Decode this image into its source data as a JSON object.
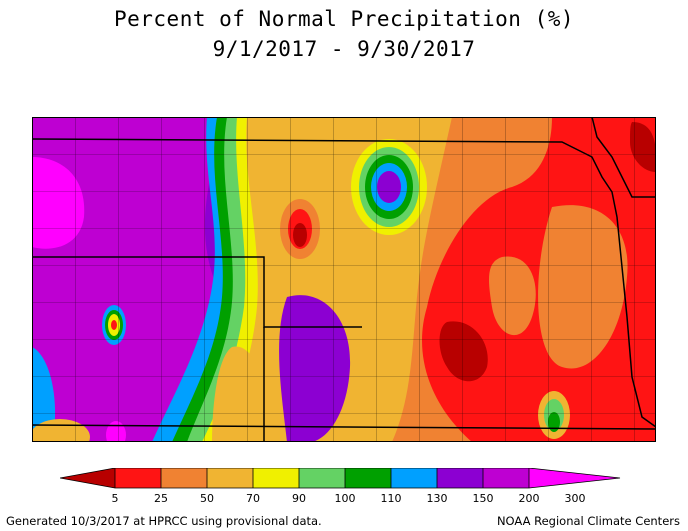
{
  "title": {
    "line1": "Percent of Normal Precipitation (%)",
    "line2": "9/1/2017 - 9/30/2017"
  },
  "legend": {
    "colors": {
      "c5": "#b80000",
      "c25": "#ff1414",
      "c50": "#f08232",
      "c70": "#f0b432",
      "c90": "#f0f000",
      "c100": "#64d264",
      "c110": "#00a000",
      "c130": "#00a0ff",
      "c150": "#8c00d2",
      "c200": "#be00d2",
      "c300": "#ff00ff"
    },
    "labels": [
      "5",
      "25",
      "50",
      "70",
      "90",
      "100",
      "110",
      "130",
      "150",
      "200",
      "300"
    ]
  },
  "footer": {
    "left": "Generated 10/3/2017 at HPRCC using provisional data.",
    "right": "NOAA Regional Climate Centers"
  }
}
